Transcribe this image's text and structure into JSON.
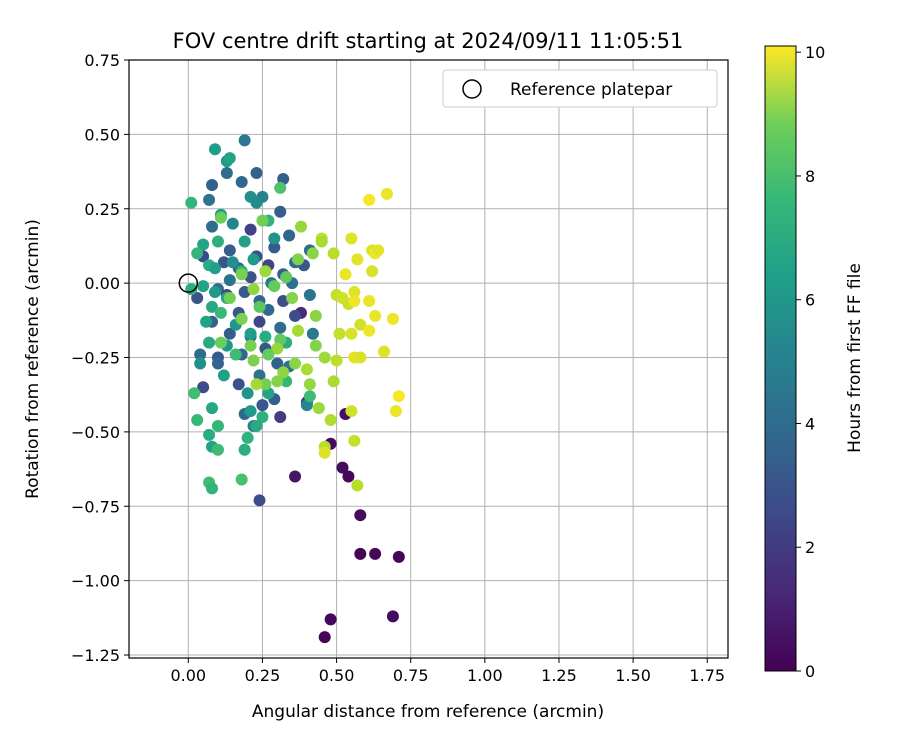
{
  "chart_data": {
    "type": "scatter",
    "title": "FOV centre drift starting at 2024/09/11 11:05:51",
    "xlabel": "Angular distance from reference (arcmin)",
    "ylabel": "Rotation from reference (arcmin)",
    "xlim": [
      -0.2,
      1.82
    ],
    "ylim": [
      -1.26,
      0.75
    ],
    "xticks": [
      "0.00",
      "0.25",
      "0.50",
      "0.75",
      "1.00",
      "1.25",
      "1.50",
      "1.75"
    ],
    "yticks": [
      "0.75",
      "0.50",
      "0.25",
      "0.00",
      "−0.25",
      "−0.50",
      "−0.75",
      "−1.00",
      "−1.25"
    ],
    "grid": true,
    "legend": {
      "location": "top-right",
      "entries": [
        {
          "label": "Reference platepar",
          "marker": "open-circle"
        }
      ]
    },
    "reference_point": {
      "x": 0.0,
      "y": 0.0
    },
    "colorbar": {
      "label": "Hours from first FF file",
      "colormap": "viridis",
      "range": [
        0,
        10.1
      ],
      "ticks": [
        "0",
        "2",
        "4",
        "6",
        "8",
        "10"
      ]
    },
    "points": [
      {
        "x": 0.53,
        "y": -0.44,
        "h": 0.4
      },
      {
        "x": 0.48,
        "y": -0.54,
        "h": 0.3
      },
      {
        "x": 0.52,
        "y": -0.62,
        "h": 0.3
      },
      {
        "x": 0.54,
        "y": -0.65,
        "h": 0.2
      },
      {
        "x": 0.36,
        "y": -0.65,
        "h": 0.6
      },
      {
        "x": 0.58,
        "y": -0.78,
        "h": 0.3
      },
      {
        "x": 0.58,
        "y": -0.91,
        "h": 0.1
      },
      {
        "x": 0.63,
        "y": -0.91,
        "h": 0.2
      },
      {
        "x": 0.71,
        "y": -0.92,
        "h": 0.1
      },
      {
        "x": 0.48,
        "y": -1.13,
        "h": 0.2
      },
      {
        "x": 0.46,
        "y": -1.19,
        "h": 0.1
      },
      {
        "x": 0.69,
        "y": -1.12,
        "h": 0.3
      },
      {
        "x": 0.38,
        "y": -0.1,
        "h": 1.2
      },
      {
        "x": 0.4,
        "y": -0.4,
        "h": 1.5
      },
      {
        "x": 0.31,
        "y": -0.45,
        "h": 1.8
      },
      {
        "x": 0.24,
        "y": -0.73,
        "h": 2.4
      },
      {
        "x": 0.21,
        "y": 0.18,
        "h": 2.0
      },
      {
        "x": 0.32,
        "y": 0.35,
        "h": 3.0
      },
      {
        "x": 0.19,
        "y": 0.48,
        "h": 4.0
      },
      {
        "x": 0.23,
        "y": 0.37,
        "h": 3.2
      },
      {
        "x": 0.13,
        "y": 0.37,
        "h": 3.6
      },
      {
        "x": 0.18,
        "y": 0.34,
        "h": 3.4
      },
      {
        "x": 0.08,
        "y": 0.33,
        "h": 3.1
      },
      {
        "x": 0.25,
        "y": 0.29,
        "h": 4.5
      },
      {
        "x": 0.07,
        "y": 0.28,
        "h": 3.8
      },
      {
        "x": 0.31,
        "y": 0.24,
        "h": 3.0
      },
      {
        "x": 0.15,
        "y": 0.2,
        "h": 4.6
      },
      {
        "x": 0.29,
        "y": 0.12,
        "h": 2.9
      },
      {
        "x": 0.34,
        "y": 0.16,
        "h": 3.3
      },
      {
        "x": 0.41,
        "y": 0.11,
        "h": 3.6
      },
      {
        "x": 0.23,
        "y": 0.09,
        "h": 2.5
      },
      {
        "x": 0.12,
        "y": 0.07,
        "h": 2.7
      },
      {
        "x": 0.05,
        "y": 0.09,
        "h": 2.2
      },
      {
        "x": 0.27,
        "y": 0.06,
        "h": 2.1
      },
      {
        "x": 0.36,
        "y": 0.07,
        "h": 3.5
      },
      {
        "x": 0.39,
        "y": 0.06,
        "h": 2.8
      },
      {
        "x": 0.17,
        "y": 0.05,
        "h": 3.0
      },
      {
        "x": 0.32,
        "y": 0.03,
        "h": 3.2
      },
      {
        "x": 0.21,
        "y": 0.02,
        "h": 2.6
      },
      {
        "x": 0.14,
        "y": 0.01,
        "h": 3.9
      },
      {
        "x": 0.28,
        "y": 0.0,
        "h": 4.2
      },
      {
        "x": 0.35,
        "y": 0.0,
        "h": 3.7
      },
      {
        "x": 0.1,
        "y": -0.02,
        "h": 3.5
      },
      {
        "x": 0.19,
        "y": -0.03,
        "h": 2.9
      },
      {
        "x": 0.03,
        "y": -0.05,
        "h": 2.6
      },
      {
        "x": 0.13,
        "y": -0.04,
        "h": 2.3
      },
      {
        "x": 0.24,
        "y": -0.06,
        "h": 3.3
      },
      {
        "x": 0.32,
        "y": -0.06,
        "h": 2.5
      },
      {
        "x": 0.41,
        "y": -0.04,
        "h": 3.9
      },
      {
        "x": 0.27,
        "y": -0.09,
        "h": 3.4
      },
      {
        "x": 0.17,
        "y": -0.1,
        "h": 2.8
      },
      {
        "x": 0.36,
        "y": -0.11,
        "h": 2.4
      },
      {
        "x": 0.08,
        "y": -0.13,
        "h": 3.1
      },
      {
        "x": 0.24,
        "y": -0.13,
        "h": 2.1
      },
      {
        "x": 0.31,
        "y": -0.15,
        "h": 3.6
      },
      {
        "x": 0.14,
        "y": -0.17,
        "h": 3.0
      },
      {
        "x": 0.21,
        "y": -0.18,
        "h": 3.8
      },
      {
        "x": 0.42,
        "y": -0.17,
        "h": 4.1
      },
      {
        "x": 0.26,
        "y": -0.22,
        "h": 2.7
      },
      {
        "x": 0.18,
        "y": -0.24,
        "h": 3.3
      },
      {
        "x": 0.1,
        "y": -0.25,
        "h": 2.9
      },
      {
        "x": 0.04,
        "y": -0.24,
        "h": 3.5
      },
      {
        "x": 0.3,
        "y": -0.27,
        "h": 3.2
      },
      {
        "x": 0.24,
        "y": -0.31,
        "h": 3.7
      },
      {
        "x": 0.17,
        "y": -0.34,
        "h": 2.6
      },
      {
        "x": 0.29,
        "y": -0.39,
        "h": 3.0
      },
      {
        "x": 0.05,
        "y": -0.35,
        "h": 2.4
      },
      {
        "x": 0.19,
        "y": -0.44,
        "h": 3.4
      },
      {
        "x": 0.25,
        "y": -0.41,
        "h": 2.8
      },
      {
        "x": 0.34,
        "y": -0.28,
        "h": 3.9
      },
      {
        "x": 0.4,
        "y": -0.41,
        "h": 4.7
      },
      {
        "x": 0.22,
        "y": -0.48,
        "h": 4.4
      },
      {
        "x": 0.1,
        "y": -0.27,
        "h": 3.3
      },
      {
        "x": 0.08,
        "y": 0.19,
        "h": 3.6
      },
      {
        "x": 0.14,
        "y": 0.11,
        "h": 3.0
      },
      {
        "x": 0.09,
        "y": 0.45,
        "h": 5.6
      },
      {
        "x": 0.13,
        "y": 0.41,
        "h": 5.4
      },
      {
        "x": 0.14,
        "y": 0.42,
        "h": 5.8
      },
      {
        "x": 0.21,
        "y": 0.29,
        "h": 5.1
      },
      {
        "x": 0.23,
        "y": 0.27,
        "h": 4.9
      },
      {
        "x": 0.11,
        "y": 0.23,
        "h": 5.5
      },
      {
        "x": 0.31,
        "y": 0.32,
        "h": 7.2
      },
      {
        "x": 0.05,
        "y": 0.13,
        "h": 5.9
      },
      {
        "x": 0.1,
        "y": 0.14,
        "h": 6.4
      },
      {
        "x": 0.29,
        "y": 0.15,
        "h": 5.2
      },
      {
        "x": 0.19,
        "y": 0.14,
        "h": 5.7
      },
      {
        "x": 0.03,
        "y": 0.1,
        "h": 6.6
      },
      {
        "x": 0.07,
        "y": 0.06,
        "h": 6.2
      },
      {
        "x": 0.15,
        "y": 0.07,
        "h": 5.0
      },
      {
        "x": 0.22,
        "y": 0.08,
        "h": 5.5
      },
      {
        "x": 0.01,
        "y": 0.27,
        "h": 6.6
      },
      {
        "x": 0.27,
        "y": 0.21,
        "h": 6.5
      },
      {
        "x": 0.09,
        "y": 0.05,
        "h": 5.7
      },
      {
        "x": 0.18,
        "y": 0.04,
        "h": 6.4
      },
      {
        "x": 0.01,
        "y": -0.02,
        "h": 6.3
      },
      {
        "x": 0.05,
        "y": -0.01,
        "h": 5.8
      },
      {
        "x": 0.09,
        "y": -0.03,
        "h": 5.4
      },
      {
        "x": 0.13,
        "y": -0.05,
        "h": 6.0
      },
      {
        "x": 0.08,
        "y": -0.08,
        "h": 6.1
      },
      {
        "x": 0.11,
        "y": -0.1,
        "h": 6.8
      },
      {
        "x": 0.16,
        "y": -0.14,
        "h": 5.3
      },
      {
        "x": 0.06,
        "y": -0.13,
        "h": 5.8
      },
      {
        "x": 0.21,
        "y": -0.17,
        "h": 5.6
      },
      {
        "x": 0.13,
        "y": -0.21,
        "h": 5.4
      },
      {
        "x": 0.26,
        "y": -0.18,
        "h": 6.2
      },
      {
        "x": 0.07,
        "y": -0.2,
        "h": 6.1
      },
      {
        "x": 0.16,
        "y": -0.24,
        "h": 6.9
      },
      {
        "x": 0.04,
        "y": -0.27,
        "h": 5.1
      },
      {
        "x": 0.12,
        "y": -0.31,
        "h": 5.7
      },
      {
        "x": 0.33,
        "y": -0.2,
        "h": 6.3
      },
      {
        "x": 0.2,
        "y": -0.37,
        "h": 5.2
      },
      {
        "x": 0.27,
        "y": -0.37,
        "h": 5.9
      },
      {
        "x": 0.33,
        "y": -0.33,
        "h": 6.7
      },
      {
        "x": 0.41,
        "y": -0.38,
        "h": 6.9
      },
      {
        "x": 0.08,
        "y": -0.42,
        "h": 6.0
      },
      {
        "x": 0.21,
        "y": -0.43,
        "h": 5.5
      },
      {
        "x": 0.25,
        "y": -0.45,
        "h": 6.4
      },
      {
        "x": 0.1,
        "y": -0.48,
        "h": 6.6
      },
      {
        "x": 0.03,
        "y": -0.46,
        "h": 6.8
      },
      {
        "x": 0.23,
        "y": -0.48,
        "h": 6.1
      },
      {
        "x": 0.2,
        "y": -0.52,
        "h": 6.5
      },
      {
        "x": 0.07,
        "y": -0.51,
        "h": 6.2
      },
      {
        "x": 0.08,
        "y": -0.55,
        "h": 5.9
      },
      {
        "x": 0.19,
        "y": -0.56,
        "h": 6.3
      },
      {
        "x": 0.1,
        "y": -0.56,
        "h": 6.9
      },
      {
        "x": 0.07,
        "y": -0.67,
        "h": 7.0
      },
      {
        "x": 0.08,
        "y": -0.69,
        "h": 6.6
      },
      {
        "x": 0.18,
        "y": -0.66,
        "h": 7.1
      },
      {
        "x": 0.02,
        "y": -0.37,
        "h": 7.0
      },
      {
        "x": 0.38,
        "y": 0.19,
        "h": 8.5
      },
      {
        "x": 0.25,
        "y": 0.21,
        "h": 7.9
      },
      {
        "x": 0.11,
        "y": 0.22,
        "h": 7.8
      },
      {
        "x": 0.26,
        "y": 0.04,
        "h": 8.6
      },
      {
        "x": 0.33,
        "y": 0.02,
        "h": 7.6
      },
      {
        "x": 0.42,
        "y": 0.1,
        "h": 8.3
      },
      {
        "x": 0.37,
        "y": 0.08,
        "h": 8.1
      },
      {
        "x": 0.18,
        "y": 0.03,
        "h": 8.0
      },
      {
        "x": 0.29,
        "y": -0.01,
        "h": 7.7
      },
      {
        "x": 0.22,
        "y": -0.02,
        "h": 8.4
      },
      {
        "x": 0.14,
        "y": -0.05,
        "h": 7.9
      },
      {
        "x": 0.35,
        "y": -0.05,
        "h": 8.2
      },
      {
        "x": 0.24,
        "y": -0.08,
        "h": 7.5
      },
      {
        "x": 0.43,
        "y": -0.11,
        "h": 8.3
      },
      {
        "x": 0.18,
        "y": -0.12,
        "h": 8.1
      },
      {
        "x": 0.31,
        "y": -0.19,
        "h": 7.6
      },
      {
        "x": 0.37,
        "y": -0.16,
        "h": 8.7
      },
      {
        "x": 0.21,
        "y": -0.21,
        "h": 8.0
      },
      {
        "x": 0.43,
        "y": -0.21,
        "h": 8.2
      },
      {
        "x": 0.3,
        "y": -0.22,
        "h": 8.5
      },
      {
        "x": 0.11,
        "y": -0.2,
        "h": 7.8
      },
      {
        "x": 0.46,
        "y": -0.25,
        "h": 8.6
      },
      {
        "x": 0.27,
        "y": -0.24,
        "h": 7.7
      },
      {
        "x": 0.36,
        "y": -0.27,
        "h": 8.3
      },
      {
        "x": 0.22,
        "y": -0.26,
        "h": 8.1
      },
      {
        "x": 0.4,
        "y": -0.29,
        "h": 8.8
      },
      {
        "x": 0.32,
        "y": -0.3,
        "h": 8.4
      },
      {
        "x": 0.26,
        "y": -0.34,
        "h": 7.9
      },
      {
        "x": 0.3,
        "y": -0.33,
        "h": 8.2
      },
      {
        "x": 0.41,
        "y": -0.34,
        "h": 8.5
      },
      {
        "x": 0.23,
        "y": -0.34,
        "h": 8.7
      },
      {
        "x": 0.44,
        "y": -0.42,
        "h": 8.6
      },
      {
        "x": 0.48,
        "y": -0.46,
        "h": 8.9
      },
      {
        "x": 0.46,
        "y": -0.55,
        "h": 9.0
      },
      {
        "x": 0.49,
        "y": -0.33,
        "h": 8.8
      },
      {
        "x": 0.45,
        "y": 0.15,
        "h": 9.1
      },
      {
        "x": 0.45,
        "y": 0.14,
        "h": 8.8
      },
      {
        "x": 0.49,
        "y": 0.1,
        "h": 9.0
      },
      {
        "x": 0.5,
        "y": -0.04,
        "h": 9.2
      },
      {
        "x": 0.52,
        "y": -0.05,
        "h": 9.4
      },
      {
        "x": 0.54,
        "y": -0.07,
        "h": 9.3
      },
      {
        "x": 0.51,
        "y": -0.17,
        "h": 9.2
      },
      {
        "x": 0.55,
        "y": -0.17,
        "h": 9.5
      },
      {
        "x": 0.5,
        "y": -0.26,
        "h": 9.1
      },
      {
        "x": 0.55,
        "y": -0.43,
        "h": 9.4
      },
      {
        "x": 0.56,
        "y": -0.53,
        "h": 9.2
      },
      {
        "x": 0.57,
        "y": -0.68,
        "h": 9.0
      },
      {
        "x": 0.46,
        "y": -0.57,
        "h": 9.6
      },
      {
        "x": 0.53,
        "y": 0.03,
        "h": 9.8
      },
      {
        "x": 0.57,
        "y": 0.08,
        "h": 9.7
      },
      {
        "x": 0.55,
        "y": 0.15,
        "h": 9.6
      },
      {
        "x": 0.56,
        "y": -0.03,
        "h": 9.6
      },
      {
        "x": 0.56,
        "y": -0.06,
        "h": 9.9
      },
      {
        "x": 0.58,
        "y": -0.14,
        "h": 9.4
      },
      {
        "x": 0.56,
        "y": -0.25,
        "h": 9.7
      },
      {
        "x": 0.58,
        "y": -0.25,
        "h": 9.5
      },
      {
        "x": 0.61,
        "y": -0.06,
        "h": 9.8
      },
      {
        "x": 0.61,
        "y": 0.28,
        "h": 10.0
      },
      {
        "x": 0.67,
        "y": 0.3,
        "h": 9.8
      },
      {
        "x": 0.62,
        "y": 0.11,
        "h": 9.6
      },
      {
        "x": 0.63,
        "y": 0.1,
        "h": 9.9
      },
      {
        "x": 0.64,
        "y": 0.11,
        "h": 9.7
      },
      {
        "x": 0.62,
        "y": 0.04,
        "h": 9.5
      },
      {
        "x": 0.63,
        "y": -0.11,
        "h": 9.8
      },
      {
        "x": 0.61,
        "y": -0.16,
        "h": 9.9
      },
      {
        "x": 0.66,
        "y": -0.23,
        "h": 9.6
      },
      {
        "x": 0.69,
        "y": -0.12,
        "h": 9.9
      },
      {
        "x": 0.71,
        "y": -0.38,
        "h": 10.0
      },
      {
        "x": 0.7,
        "y": -0.43,
        "h": 9.8
      }
    ]
  }
}
